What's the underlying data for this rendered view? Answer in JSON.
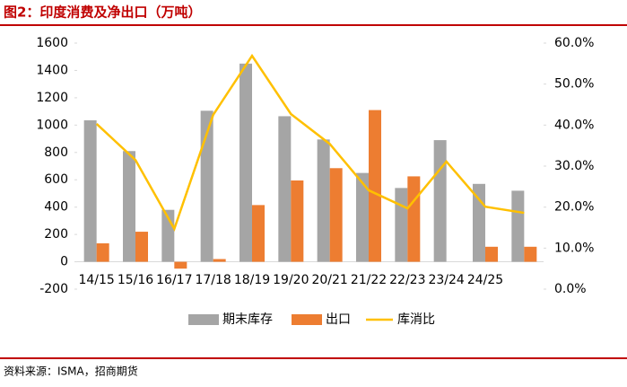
{
  "title": "图2：印度消费及净出口（万吨）",
  "source": "资料来源：ISMA，招商期货",
  "chart_data": {
    "type": "bar-line",
    "categories": [
      "14/15",
      "15/16",
      "16/17",
      "17/18",
      "18/19",
      "19/20",
      "20/21",
      "21/22",
      "22/23",
      "23/24",
      "24/25",
      null
    ],
    "series": [
      {
        "name": "期末库存",
        "color": "#a5a5a5",
        "type": "bar",
        "values": [
          1035,
          810,
          380,
          1105,
          1450,
          1065,
          895,
          650,
          540,
          890,
          570,
          520
        ]
      },
      {
        "name": "出口",
        "color": "#ed7d31",
        "type": "bar",
        "values": [
          135,
          220,
          -50,
          20,
          415,
          595,
          685,
          1110,
          625,
          null,
          110,
          110
        ]
      },
      {
        "name": "库消比",
        "color": "#ffc000",
        "type": "line",
        "axis": "y2",
        "values": [
          40.3,
          31.5,
          14.7,
          42.5,
          56.9,
          42.7,
          35.4,
          24.1,
          19.7,
          31.1,
          20.1,
          18.6
        ]
      }
    ],
    "ylim": [
      -200,
      1600
    ],
    "yticks": [
      -200,
      0,
      200,
      400,
      600,
      800,
      1000,
      1200,
      1400,
      1600
    ],
    "y2lim": [
      0,
      60
    ],
    "y2ticks": [
      {
        "value": 0,
        "label": "0.0%"
      },
      {
        "value": 10,
        "label": "10.0%"
      },
      {
        "value": 20,
        "label": "20.0%"
      },
      {
        "value": 30,
        "label": "30.0%"
      },
      {
        "value": 40,
        "label": "40.0%"
      },
      {
        "value": 50,
        "label": "50.0%"
      },
      {
        "value": 60,
        "label": "60.0%"
      }
    ]
  }
}
